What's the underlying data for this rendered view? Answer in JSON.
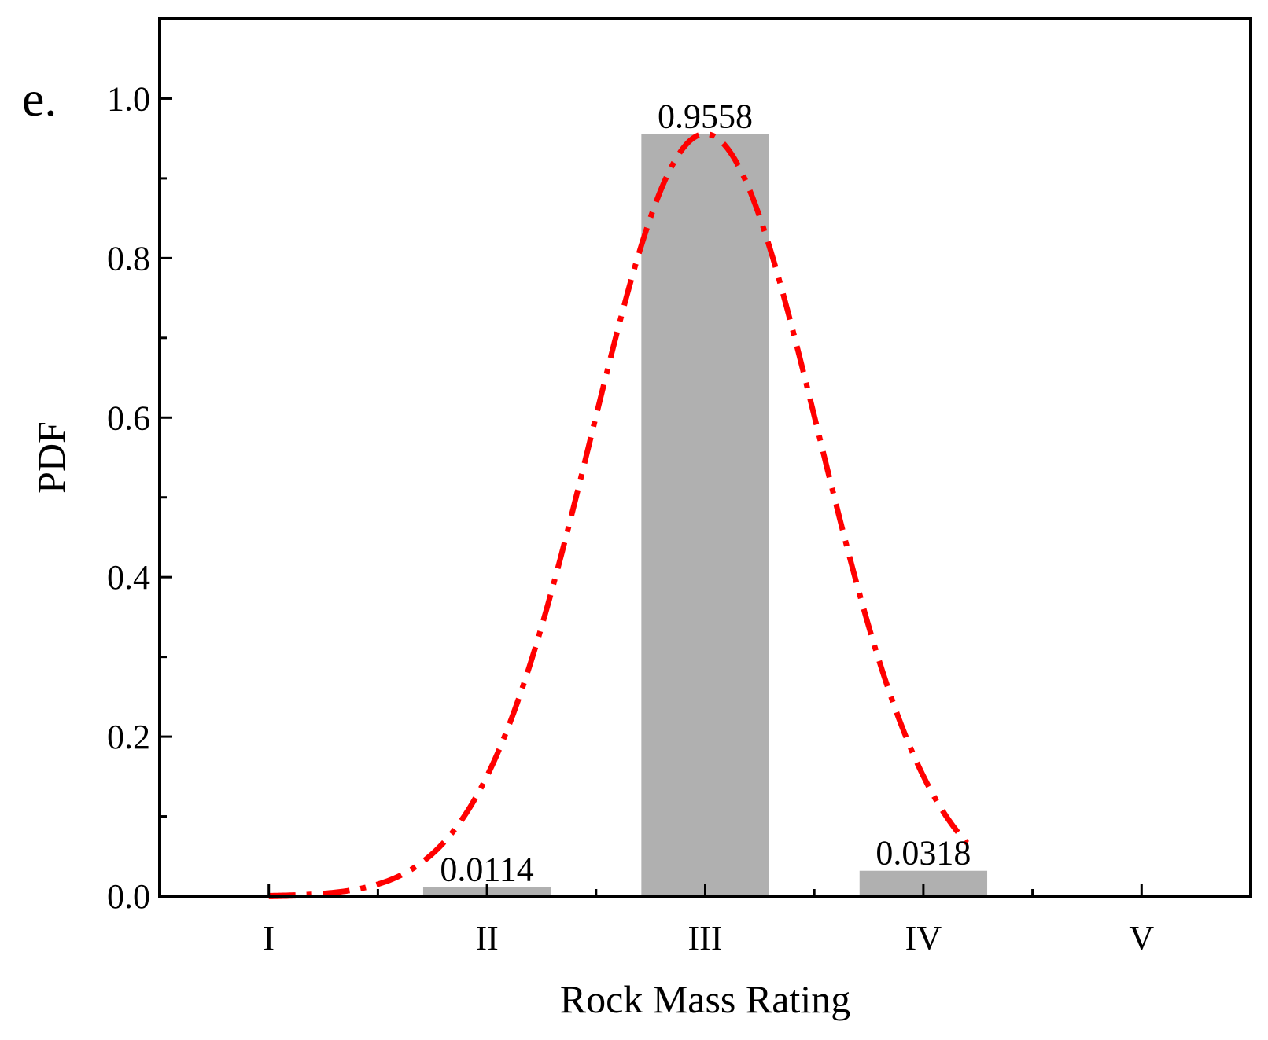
{
  "panel_label": "e.",
  "chart_data": {
    "type": "bar",
    "title": "",
    "xlabel": "Rock Mass Rating",
    "ylabel": "PDF",
    "categories": [
      "I",
      "II",
      "III",
      "IV",
      "V"
    ],
    "values": [
      0,
      0.0114,
      0.9558,
      0.0318,
      0
    ],
    "data_labels": [
      "",
      "0.0114",
      "0.9558",
      "0.0318",
      ""
    ],
    "ylim": [
      0,
      1.1
    ],
    "yticks": [
      0.0,
      0.2,
      0.4,
      0.6,
      0.8,
      1.0
    ],
    "ytick_labels": [
      "0.0",
      "0.2",
      "0.4",
      "0.6",
      "0.8",
      "1.0"
    ],
    "grid": false,
    "bar_color": "#b0b0b0",
    "overlay": {
      "type": "line",
      "style": "dash-dot",
      "color": "#ff0000",
      "description": "fitted normal PDF curve",
      "mean_category_index": 2,
      "sigma_categories": 0.52,
      "peak": 0.9558
    }
  }
}
